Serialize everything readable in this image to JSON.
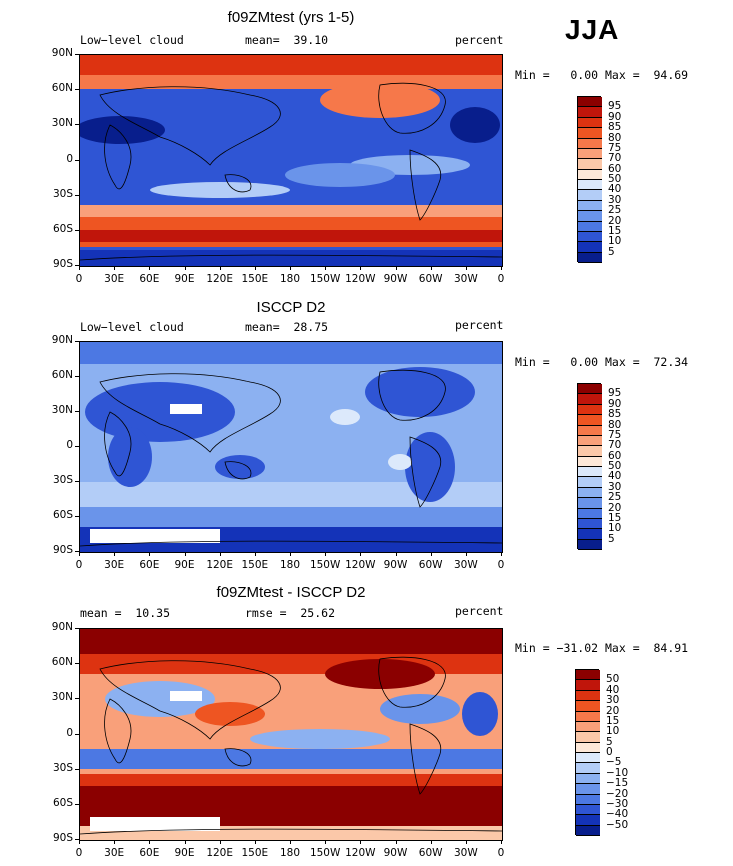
{
  "season_label": "JJA",
  "lat_labels": [
    "90N",
    "60N",
    "30N",
    "0",
    "30S",
    "60S",
    "90S"
  ],
  "lon_labels": [
    "0",
    "30E",
    "60E",
    "90E",
    "120E",
    "150E",
    "180",
    "150W",
    "120W",
    "90W",
    "60W",
    "30W",
    "0"
  ],
  "panels": [
    {
      "title": "f09ZMtest (yrs 1-5)",
      "left_label": "Low−level cloud",
      "center_label": "mean=  39.10",
      "right_label": "percent",
      "minmax": "Min =   0.00 Max =  94.69",
      "map_theme": "high",
      "colorbar": {
        "labels": [
          "95",
          "90",
          "85",
          "80",
          "75",
          "70",
          "60",
          "50",
          "40",
          "30",
          "25",
          "20",
          "15",
          "10",
          "5"
        ],
        "colors": [
          "#8b0000",
          "#c0150b",
          "#dd3311",
          "#ee5522",
          "#f6784a",
          "#f9a07a",
          "#fbc8a9",
          "#fde8d8",
          "#dce9fb",
          "#b3cdf7",
          "#8cb1f1",
          "#6a94ea",
          "#4c78e3",
          "#2f55d4",
          "#1433b8",
          "#081e8c"
        ]
      }
    },
    {
      "title": "ISCCP D2",
      "left_label": "Low−level cloud",
      "center_label": "mean=  28.75",
      "right_label": "percent",
      "minmax": "Min =   0.00 Max =  72.34",
      "map_theme": "obs",
      "colorbar": {
        "labels": [
          "95",
          "90",
          "85",
          "80",
          "75",
          "70",
          "60",
          "50",
          "40",
          "30",
          "25",
          "20",
          "15",
          "10",
          "5"
        ],
        "colors": [
          "#8b0000",
          "#c0150b",
          "#dd3311",
          "#ee5522",
          "#f6784a",
          "#f9a07a",
          "#fbc8a9",
          "#fde8d8",
          "#dce9fb",
          "#b3cdf7",
          "#8cb1f1",
          "#6a94ea",
          "#4c78e3",
          "#2f55d4",
          "#1433b8",
          "#081e8c"
        ]
      }
    },
    {
      "title": "f09ZMtest - ISCCP D2",
      "left_label": "mean =  10.35",
      "center_label": "rmse =  25.62",
      "right_label": "percent",
      "minmax": "Min = −31.02 Max =  84.91",
      "map_theme": "diff",
      "colorbar": {
        "labels": [
          "50",
          "40",
          "30",
          "20",
          "15",
          "10",
          "5",
          "0",
          "−5",
          "−10",
          "−15",
          "−20",
          "−30",
          "−40",
          "−50"
        ],
        "colors": [
          "#8b0000",
          "#c0150b",
          "#dd3311",
          "#ee5522",
          "#f6784a",
          "#f9a07a",
          "#fbc8a9",
          "#fde8d8",
          "#dce9fb",
          "#b3cdf7",
          "#8cb1f1",
          "#6a94ea",
          "#4c78e3",
          "#2f55d4",
          "#1433b8",
          "#081e8c"
        ]
      }
    }
  ]
}
